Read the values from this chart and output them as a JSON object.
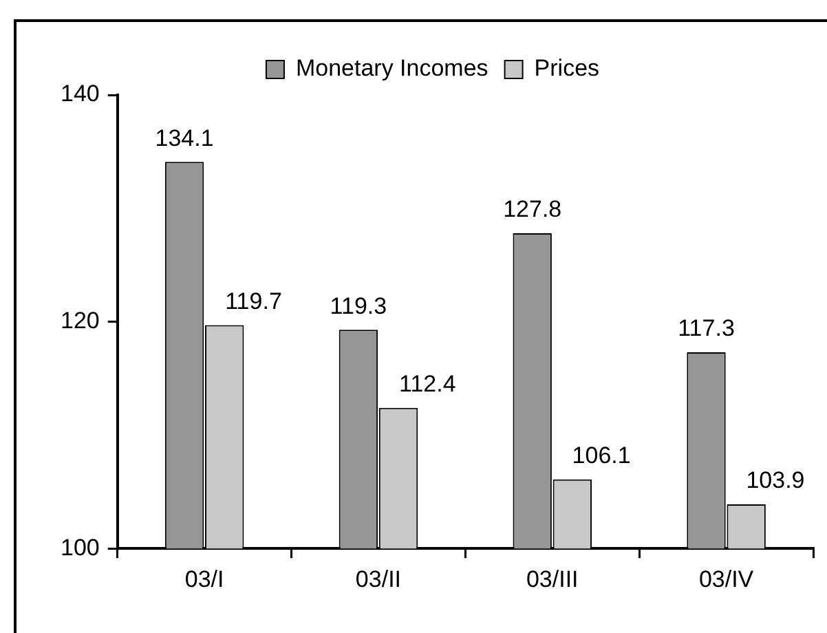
{
  "chart_data": {
    "type": "bar",
    "categories": [
      "03/I",
      "03/II",
      "03/III",
      "03/IV"
    ],
    "series": [
      {
        "name": "Monetary Incomes",
        "color": "#969696",
        "values": [
          134.1,
          119.3,
          127.8,
          117.3
        ]
      },
      {
        "name": "Prices",
        "color": "#c8c8c8",
        "values": [
          119.7,
          112.4,
          106.1,
          103.9
        ]
      }
    ],
    "ylim": [
      100,
      140
    ],
    "yticks": [
      100,
      120,
      140
    ],
    "grid": false,
    "legend": "top",
    "data_labels": true
  }
}
